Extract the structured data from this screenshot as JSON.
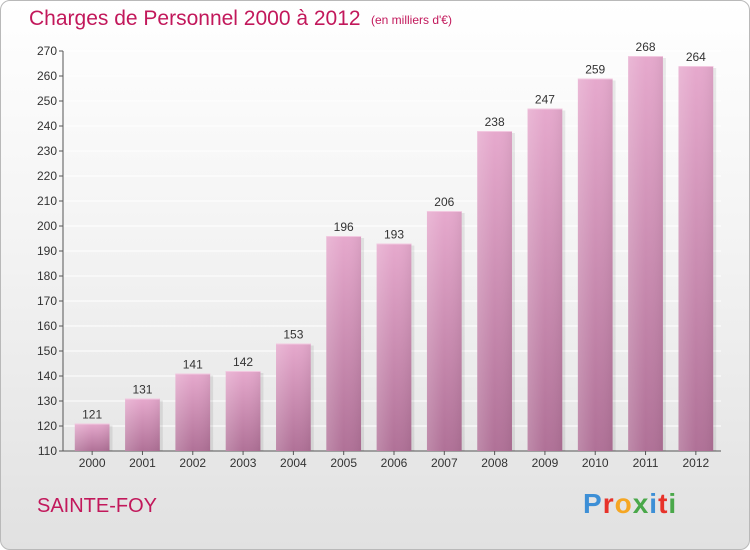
{
  "header": {
    "title": "Charges de Personnel 2000 à 2012",
    "subtitle": "(en milliers d'€)"
  },
  "footer": {
    "commune": "SAINTE-FOY",
    "logo_text": "Proxiti"
  },
  "colors": {
    "bar": "#c98bb0",
    "bar_light": "#e3a9cc",
    "title": "#c2185b"
  },
  "chart_data": {
    "type": "bar",
    "title": "Charges de Personnel 2000 à 2012",
    "subtitle": "(en milliers d'€)",
    "categories": [
      "2000",
      "2001",
      "2002",
      "2003",
      "2004",
      "2005",
      "2006",
      "2007",
      "2008",
      "2009",
      "2010",
      "2011",
      "2012"
    ],
    "values": [
      121,
      131,
      141,
      142,
      153,
      196,
      193,
      206,
      238,
      247,
      259,
      268,
      264
    ],
    "ylim": [
      110,
      270
    ],
    "yticks": [
      110,
      120,
      130,
      140,
      150,
      160,
      170,
      180,
      190,
      200,
      210,
      220,
      230,
      240,
      250,
      260,
      270
    ],
    "grid": true,
    "xlabel": "",
    "ylabel": ""
  }
}
